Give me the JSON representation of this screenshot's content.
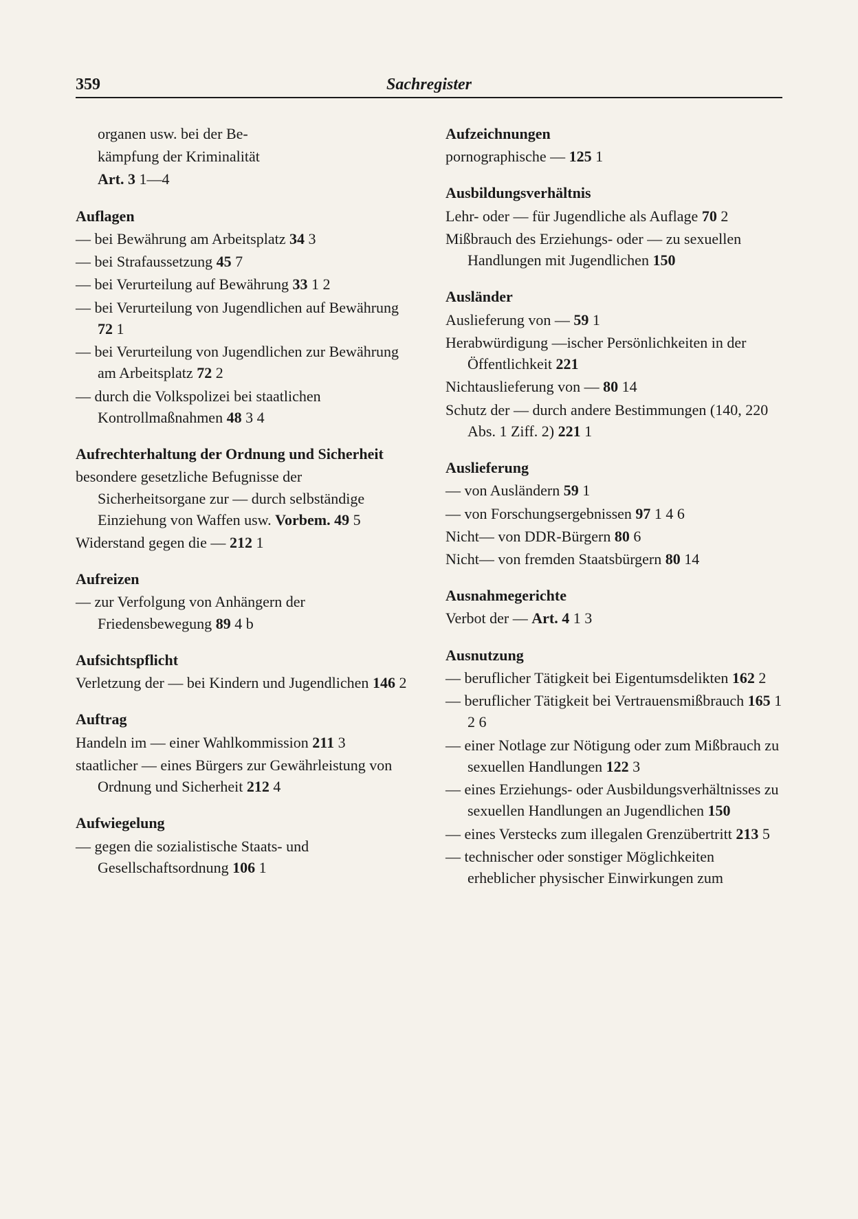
{
  "page_number": "359",
  "header_title": "Sachregister",
  "typography": {
    "body_fontsize_pt": 22,
    "heading_fontweight": "bold",
    "font_family": "serif"
  },
  "colors": {
    "background": "#f5f2eb",
    "text": "#1a1a1a",
    "rule": "#1a1a1a"
  },
  "left_column": {
    "intro_lines": [
      "organen usw. bei der Be-",
      "kämpfung der Kriminalität"
    ],
    "intro_ref": "Art. 3",
    "intro_suffix": " 1—4",
    "sections": [
      {
        "heading": "Auflagen",
        "entries": [
          {
            "text": "— bei Bewährung am Arbeitsplatz  ",
            "ref": "34",
            "suffix": " 3"
          },
          {
            "text": "— bei Strafaussetzung  ",
            "ref": "45",
            "suffix": " 7"
          },
          {
            "text": "— bei Verurteilung auf Bewährung  ",
            "ref": "33",
            "suffix": " 1 2"
          },
          {
            "text": "— bei Verurteilung von Jugendlichen auf Bewährung  ",
            "ref": "72",
            "suffix": " 1"
          },
          {
            "text": "— bei Verurteilung von Jugendlichen zur Bewährung am Arbeitsplatz  ",
            "ref": "72",
            "suffix": " 2"
          },
          {
            "text": "— durch die Volkspolizei bei staatlichen Kontrollmaßnahmen  ",
            "ref": "48",
            "suffix": " 3 4"
          }
        ]
      },
      {
        "heading": "Aufrechterhaltung der Ordnung und Sicherheit",
        "entries": [
          {
            "text": "besondere gesetzliche Befugnisse der Sicherheitsorgane zur — durch selbständige Einziehung von Waffen usw. ",
            "ref": "Vorbem. 49",
            "suffix": " 5"
          },
          {
            "text": "Widerstand gegen die —  ",
            "ref": "212",
            "suffix": " 1"
          }
        ]
      },
      {
        "heading": "Aufreizen",
        "entries": [
          {
            "text": "— zur Verfolgung von Anhängern der Friedensbewegung ",
            "ref": "89",
            "suffix": " 4 b"
          }
        ]
      },
      {
        "heading": "Aufsichtspflicht",
        "entries": [
          {
            "text": "Verletzung der — bei Kindern und Jugendlichen  ",
            "ref": "146",
            "suffix": " 2"
          }
        ]
      },
      {
        "heading": "Auftrag",
        "entries": [
          {
            "text": "Handeln im — einer Wahlkommission  ",
            "ref": "211",
            "suffix": " 3"
          },
          {
            "text": "staatlicher — eines Bürgers zur Gewährleistung von Ordnung und Sicherheit  ",
            "ref": "212",
            "suffix": " 4"
          }
        ]
      },
      {
        "heading": "Aufwiegelung",
        "entries": [
          {
            "text": "— gegen die sozialistische Staats- und Gesellschaftsordnung ",
            "ref": "106",
            "suffix": " 1"
          }
        ]
      }
    ]
  },
  "right_column": {
    "sections": [
      {
        "heading": "Aufzeichnungen",
        "entries": [
          {
            "text": "pornographische —  ",
            "ref": "125",
            "suffix": " 1"
          }
        ]
      },
      {
        "heading": "Ausbildungsverhältnis",
        "entries": [
          {
            "text": "Lehr- oder — für Jugendliche als Auflage  ",
            "ref": "70",
            "suffix": " 2"
          },
          {
            "text": "Mißbrauch des Erziehungs- oder — zu sexuellen Handlungen mit Jugendlichen  ",
            "ref": "150",
            "suffix": ""
          }
        ]
      },
      {
        "heading": "Ausländer",
        "entries": [
          {
            "text": "Auslieferung von —  ",
            "ref": "59",
            "suffix": " 1"
          },
          {
            "text": "Herabwürdigung —ischer Persönlichkeiten in der Öffentlichkeit ",
            "ref": "221",
            "suffix": ""
          },
          {
            "text": "Nichtauslieferung von —  ",
            "ref": "80",
            "suffix": " 14"
          },
          {
            "text": "Schutz der — durch andere Bestimmungen (140, 220 Abs. 1 Ziff. 2) ",
            "ref": "221",
            "suffix": " 1"
          }
        ]
      },
      {
        "heading": "Auslieferung",
        "entries": [
          {
            "text": "— von Ausländern  ",
            "ref": "59",
            "suffix": " 1"
          },
          {
            "text": "— von Forschungsergebnissen ",
            "ref": "97",
            "suffix": " 1 4 6"
          },
          {
            "text": "Nicht— von DDR-Bürgern  ",
            "ref": "80",
            "suffix": " 6"
          },
          {
            "text": "Nicht— von fremden Staatsbürgern  ",
            "ref": "80",
            "suffix": " 14"
          }
        ]
      },
      {
        "heading": "Ausnahmegerichte",
        "entries": [
          {
            "text": "Verbot der —  ",
            "ref": "Art. 4",
            "suffix": " 1 3"
          }
        ]
      },
      {
        "heading": "Ausnutzung",
        "entries": [
          {
            "text": "— beruflicher Tätigkeit bei Eigentumsdelikten  ",
            "ref": "162",
            "suffix": " 2"
          },
          {
            "text": "— beruflicher Tätigkeit bei Vertrauensmißbrauch  ",
            "ref": "165",
            "suffix": " 1 2 6"
          },
          {
            "text": "— einer Notlage zur Nötigung oder zum Mißbrauch zu sexuellen Handlungen  ",
            "ref": "122",
            "suffix": " 3"
          },
          {
            "text": "— eines Erziehungs- oder Ausbildungsverhältnisses zu sexuellen Handlungen an Jugendlichen  ",
            "ref": "150",
            "suffix": ""
          },
          {
            "text": "— eines Verstecks zum illegalen Grenzübertritt  ",
            "ref": "213",
            "suffix": " 5"
          },
          {
            "text": "— technischer oder sonstiger Möglichkeiten erheblicher physischer Einwirkungen zum",
            "ref": "",
            "suffix": ""
          }
        ]
      }
    ]
  }
}
